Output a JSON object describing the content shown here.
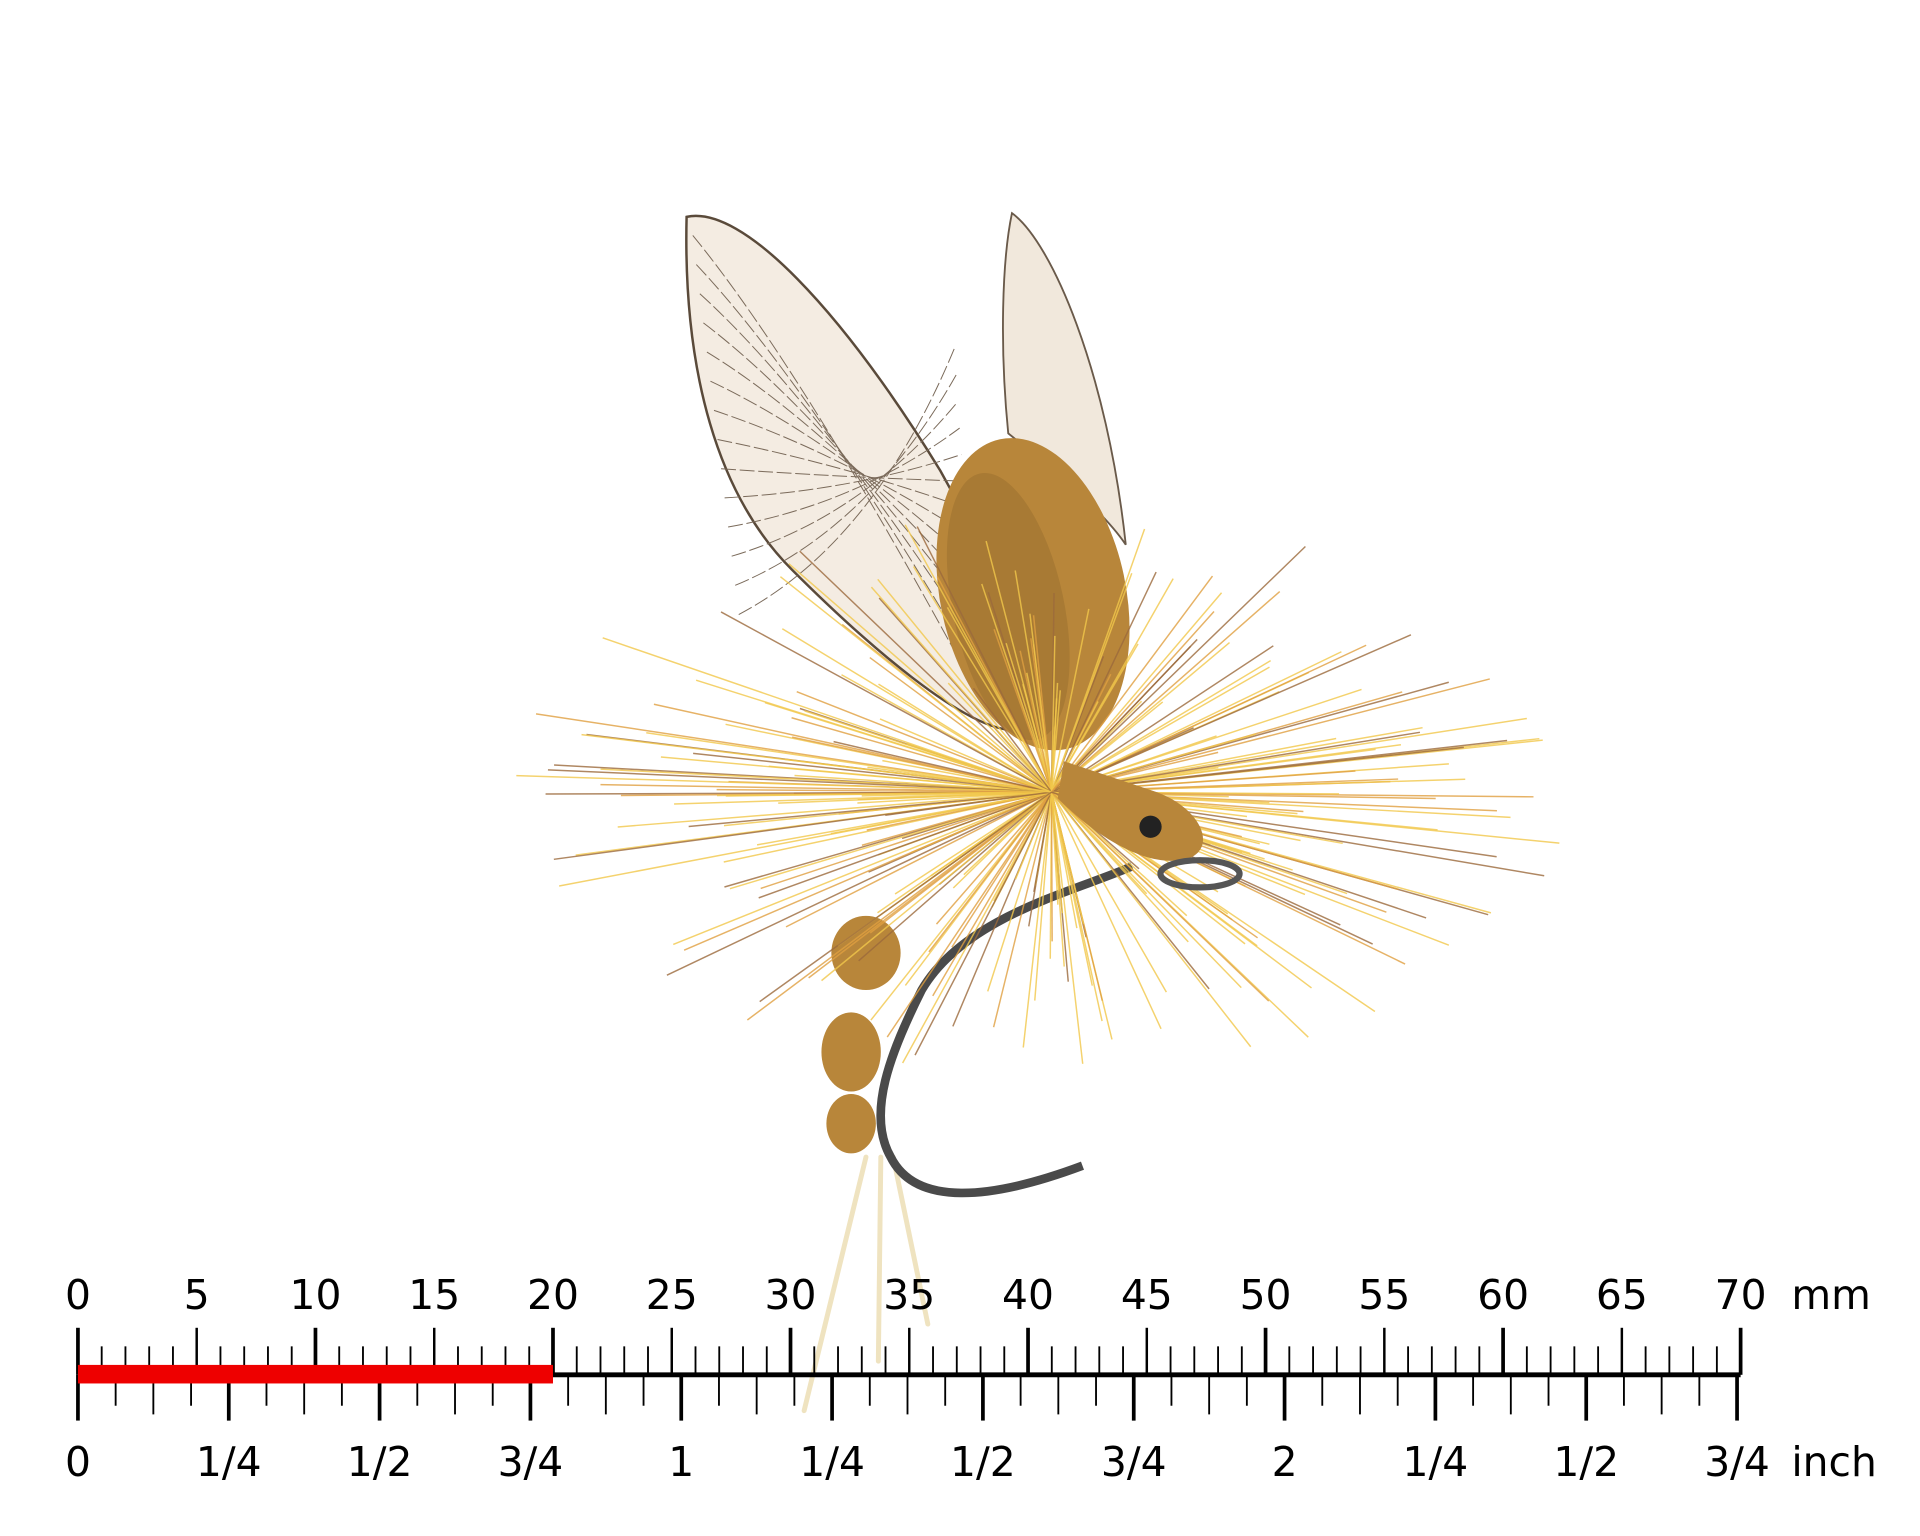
{
  "subject": "dry fly (mayfly imitation)",
  "ruler": {
    "mm_labels": [
      "0",
      "5",
      "10",
      "15",
      "20",
      "25",
      "30",
      "35",
      "40",
      "45",
      "50",
      "55",
      "60",
      "65",
      "70"
    ],
    "mm_unit": "mm",
    "inch_labels": [
      "0",
      "1/4",
      "1/2",
      "3/4",
      "1",
      "1/4",
      "1/2",
      "3/4",
      "2",
      "1/4",
      "1/2",
      "3/4"
    ],
    "inch_unit": "inch",
    "highlight_mm": 20,
    "highlight_color": "#ee0000"
  },
  "colors": {
    "foam": "#b8863a",
    "hackle_light": "#f2c84b",
    "hackle_dark": "#9c6a3c",
    "wing": "#f4ece2"
  }
}
